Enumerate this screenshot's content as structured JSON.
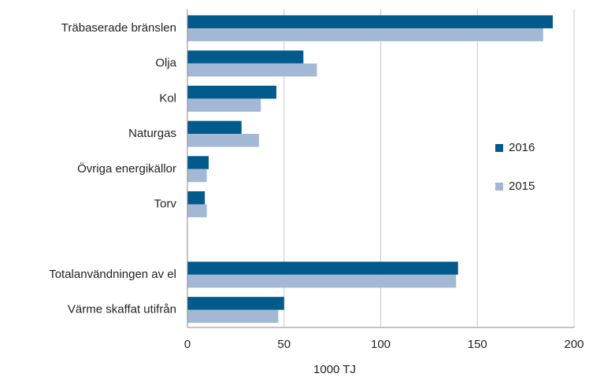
{
  "chart_data": {
    "type": "bar",
    "orientation": "horizontal",
    "categories": [
      "Träbaserade bränslen",
      "Olja",
      "Kol",
      "Naturgas",
      "Övriga energikällor",
      "Torv",
      null,
      "Totalanvändningen av el",
      "Värme skaffat utifrån"
    ],
    "series": [
      {
        "name": "2016",
        "color": "#005a8c",
        "values": [
          189,
          60,
          46,
          28,
          11,
          9,
          null,
          140,
          50
        ]
      },
      {
        "name": "2015",
        "color": "#a3b8d4",
        "values": [
          184,
          67,
          38,
          37,
          10,
          10,
          null,
          139,
          47
        ]
      }
    ],
    "xlabel": "1000 TJ",
    "xlim": [
      0,
      200
    ],
    "xticks": [
      0,
      50,
      100,
      150,
      200
    ],
    "grid": true,
    "legend": "right"
  }
}
